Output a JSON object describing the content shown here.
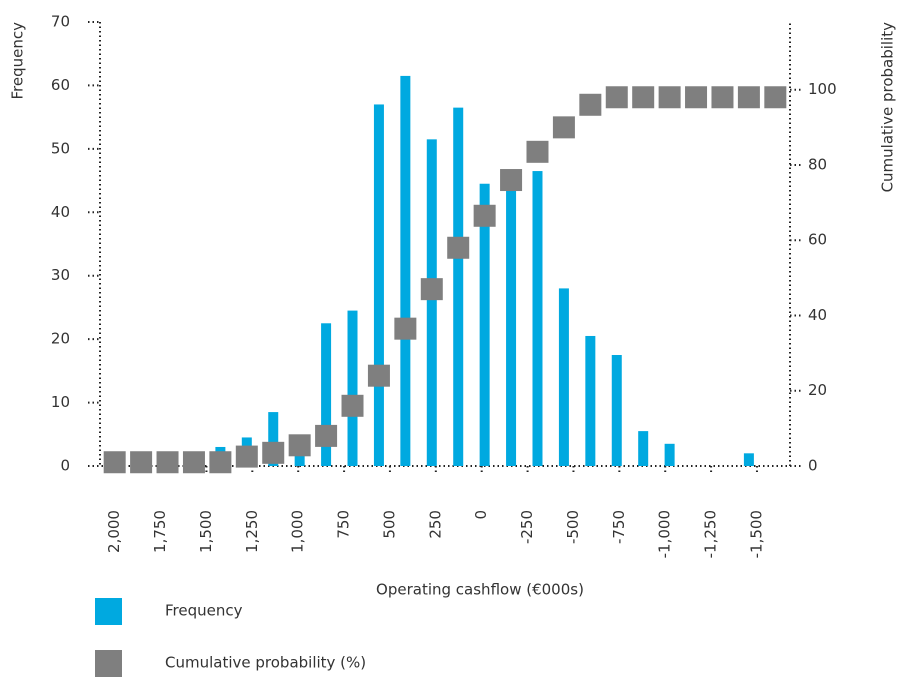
{
  "chart_data": {
    "type": "bar",
    "xlabel": "Operating cashflow (€000s)",
    "ylabel": "Frequency",
    "y2label": "Cumulative probability",
    "x": [
      2000,
      1856,
      1712,
      1568,
      1424,
      1280,
      1136,
      992,
      848,
      704,
      560,
      416,
      272,
      128,
      -16,
      -160,
      -304,
      -448,
      -592,
      -736,
      -880,
      -1024,
      -1168,
      -1312,
      -1456,
      -1600
    ],
    "series": [
      {
        "name": "Frequency",
        "color": "#00a9e0",
        "values": [
          0,
          0,
          0,
          0,
          3,
          4.5,
          8.5,
          2,
          22.5,
          24.5,
          57,
          61.5,
          51.5,
          56.5,
          44.5,
          45,
          46.5,
          28,
          20.5,
          17.5,
          5.5,
          3.5,
          0,
          0,
          2,
          0
        ]
      },
      {
        "name": "Cumulative probability (%)",
        "color": "#7f7f7f",
        "axis": "y2",
        "marker": "square",
        "values": [
          1,
          1,
          1,
          1,
          1,
          2.5,
          3.5,
          5.5,
          8,
          16,
          24,
          36.5,
          47,
          58,
          66.5,
          76,
          83.5,
          90,
          96,
          98,
          98,
          98,
          98,
          98,
          98,
          98
        ]
      }
    ],
    "xlim": [
      2080,
      -1680
    ],
    "xticks": [
      {
        "value": 2000,
        "label": "2,000"
      },
      {
        "value": 1750,
        "label": "1,750"
      },
      {
        "value": 1500,
        "label": "1,500"
      },
      {
        "value": 1250,
        "label": "1,250"
      },
      {
        "value": 1000,
        "label": "1,000"
      },
      750,
      500,
      250,
      0,
      -250,
      -500,
      -750,
      {
        "value": -1000,
        "label": "-1,000"
      },
      {
        "value": -1250,
        "label": "-1,250"
      },
      {
        "value": -1500,
        "label": "-1,500"
      }
    ],
    "ylim": [
      0,
      70
    ],
    "yticks": [
      0,
      10,
      20,
      30,
      40,
      50,
      60,
      70
    ],
    "y2lim": [
      0,
      118
    ],
    "y2ticks": [
      0,
      20,
      40,
      60,
      80,
      100
    ],
    "legend": "bottom-left"
  }
}
